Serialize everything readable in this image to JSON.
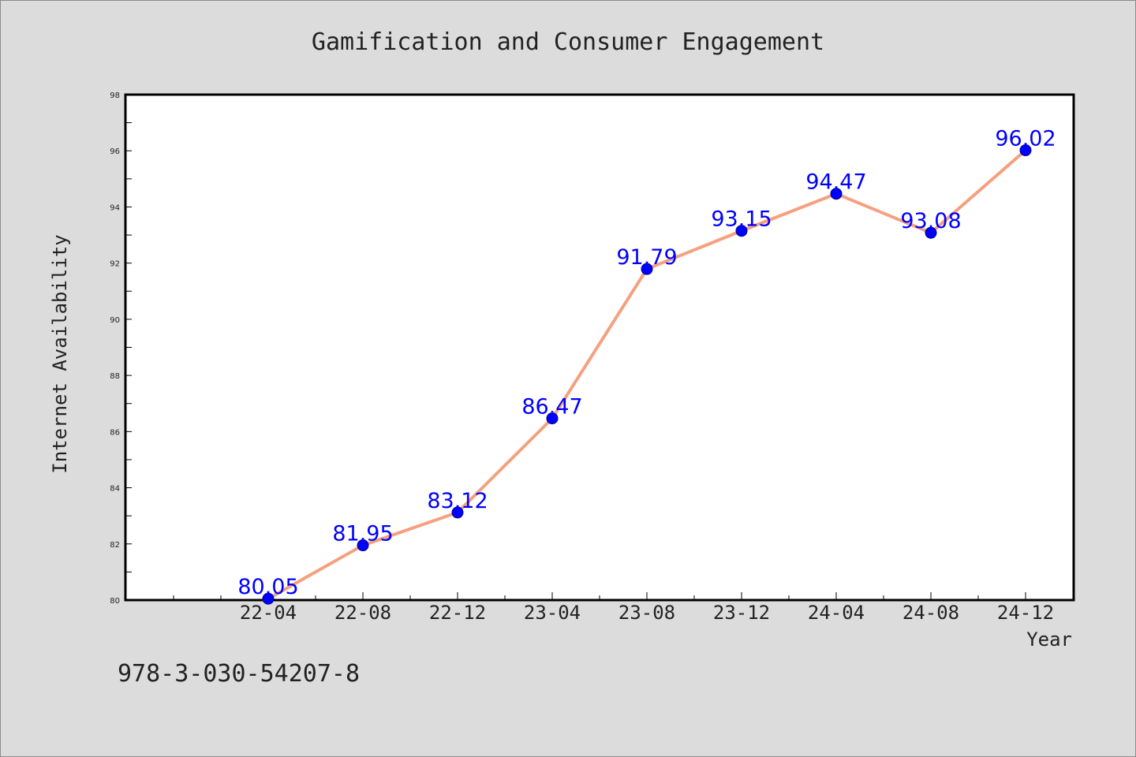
{
  "chart_data": {
    "type": "line",
    "title": "Gamification and Consumer Engagement",
    "xlabel": "Year",
    "ylabel": "Internet Availability",
    "categories": [
      "22-04",
      "22-08",
      "22-12",
      "23-04",
      "23-08",
      "23-12",
      "24-04",
      "24-08",
      "24-12"
    ],
    "series": [
      {
        "values": [
          80.05,
          81.95,
          83.12,
          86.47,
          91.79,
          93.15,
          94.47,
          93.08,
          96.02
        ]
      }
    ],
    "data_labels": [
      "80.05",
      "81.95",
      "83.12",
      "86.47",
      "91.79",
      "93.15",
      "94.47",
      "93.08",
      "96.02"
    ],
    "ylim": [
      80,
      98
    ],
    "yticks": [
      80,
      82,
      84,
      86,
      88,
      90,
      92,
      94,
      96,
      98
    ],
    "grid": false,
    "legend": "none",
    "colors": {
      "line": "#f5a07e",
      "marker": "#0000ff",
      "label": "#0000ff",
      "plot_bg": "#ffffff",
      "page_bg": "#dcdcdc"
    }
  },
  "footer": {
    "code": "978-3-030-54207-8"
  }
}
